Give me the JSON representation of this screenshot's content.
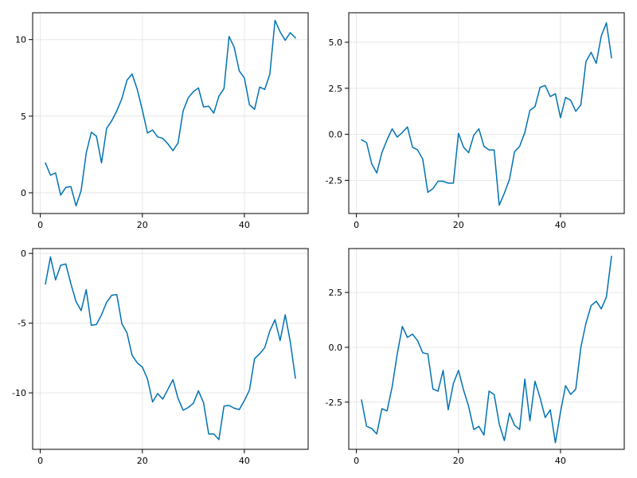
{
  "figure": {
    "line_color": "#0072b2",
    "grid": true
  },
  "chart_data": [
    {
      "type": "line",
      "title": "",
      "xlabel": "",
      "ylabel": "",
      "xlim": [
        -1.5,
        52.5
      ],
      "ylim": [
        -1.35,
        11.75
      ],
      "xticks": [
        {
          "value": 0,
          "label": "0"
        },
        {
          "value": 20,
          "label": "20"
        },
        {
          "value": 40,
          "label": "40"
        }
      ],
      "yticks": [
        {
          "value": 0,
          "label": "0"
        },
        {
          "value": 5,
          "label": "5"
        },
        {
          "value": 10,
          "label": "10"
        }
      ],
      "x": [
        1,
        2,
        3,
        4,
        5,
        6,
        7,
        8,
        9,
        10,
        11,
        12,
        13,
        14,
        15,
        16,
        17,
        18,
        19,
        20,
        21,
        22,
        23,
        24,
        25,
        26,
        27,
        28,
        29,
        30,
        31,
        32,
        33,
        34,
        35,
        36,
        37,
        38,
        39,
        40,
        41,
        42,
        43,
        44,
        45,
        46,
        47,
        48,
        49,
        50
      ],
      "series": [
        {
          "values": [
            1.95,
            1.15,
            1.3,
            -0.15,
            0.35,
            0.4,
            -0.85,
            0.15,
            2.6,
            3.95,
            3.7,
            1.95,
            4.2,
            4.7,
            5.35,
            6.15,
            7.35,
            7.75,
            6.75,
            5.4,
            3.9,
            4.1,
            3.65,
            3.55,
            3.2,
            2.75,
            3.25,
            5.35,
            6.2,
            6.6,
            6.85,
            5.6,
            5.65,
            5.2,
            6.3,
            6.8,
            10.2,
            9.5,
            7.95,
            7.5,
            5.75,
            5.45,
            6.9,
            6.75,
            7.75,
            11.25,
            10.5,
            9.95,
            10.45,
            10.1
          ]
        }
      ]
    },
    {
      "type": "line",
      "title": "",
      "xlabel": "",
      "ylabel": "",
      "xlim": [
        -1.5,
        52.5
      ],
      "ylim": [
        -4.3,
        6.6
      ],
      "xticks": [
        {
          "value": 0,
          "label": "0"
        },
        {
          "value": 20,
          "label": "20"
        },
        {
          "value": 40,
          "label": "40"
        }
      ],
      "yticks": [
        {
          "value": -2.5,
          "label": "-2.5"
        },
        {
          "value": 0,
          "label": "0.0"
        },
        {
          "value": 2.5,
          "label": "2.5"
        },
        {
          "value": 5,
          "label": "5.0"
        }
      ],
      "x": [
        1,
        2,
        3,
        4,
        5,
        6,
        7,
        8,
        9,
        10,
        11,
        12,
        13,
        14,
        15,
        16,
        17,
        18,
        19,
        20,
        21,
        22,
        23,
        24,
        25,
        26,
        27,
        28,
        29,
        30,
        31,
        32,
        33,
        34,
        35,
        36,
        37,
        38,
        39,
        40,
        41,
        42,
        43,
        44,
        45,
        46,
        47,
        48,
        49,
        50
      ],
      "series": [
        {
          "values": [
            -0.3,
            -0.45,
            -1.6,
            -2.1,
            -1.0,
            -0.3,
            0.3,
            -0.15,
            0.1,
            0.4,
            -0.7,
            -0.85,
            -1.35,
            -3.15,
            -2.95,
            -2.55,
            -2.55,
            -2.65,
            -2.65,
            0.05,
            -0.7,
            -1.0,
            -0.05,
            0.3,
            -0.65,
            -0.85,
            -0.85,
            -3.85,
            -3.2,
            -2.45,
            -0.95,
            -0.65,
            0.1,
            1.3,
            1.5,
            2.55,
            2.65,
            2.05,
            2.2,
            0.9,
            2.0,
            1.85,
            1.25,
            1.6,
            3.95,
            4.45,
            3.85,
            5.35,
            6.05,
            4.15
          ]
        }
      ]
    },
    {
      "type": "line",
      "title": "",
      "xlabel": "",
      "ylabel": "",
      "xlim": [
        -1.5,
        52.5
      ],
      "ylim": [
        -14.05,
        0.35
      ],
      "xticks": [
        {
          "value": 0,
          "label": "0"
        },
        {
          "value": 20,
          "label": "20"
        },
        {
          "value": 40,
          "label": "40"
        }
      ],
      "yticks": [
        {
          "value": -10,
          "label": "-10"
        },
        {
          "value": -5,
          "label": "-5"
        },
        {
          "value": 0,
          "label": "0"
        }
      ],
      "x": [
        1,
        2,
        3,
        4,
        5,
        6,
        7,
        8,
        9,
        10,
        11,
        12,
        13,
        14,
        15,
        16,
        17,
        18,
        19,
        20,
        21,
        22,
        23,
        24,
        25,
        26,
        27,
        28,
        29,
        30,
        31,
        32,
        33,
        34,
        35,
        36,
        37,
        38,
        39,
        40,
        41,
        42,
        43,
        44,
        45,
        46,
        47,
        48,
        49,
        50
      ],
      "series": [
        {
          "values": [
            -2.2,
            -0.25,
            -1.9,
            -0.85,
            -0.75,
            -2.2,
            -3.45,
            -4.1,
            -2.6,
            -5.15,
            -5.1,
            -4.4,
            -3.5,
            -3.0,
            -2.95,
            -5.05,
            -5.7,
            -7.3,
            -7.85,
            -8.15,
            -9.0,
            -10.65,
            -10.05,
            -10.45,
            -9.75,
            -9.05,
            -10.4,
            -11.25,
            -11.05,
            -10.75,
            -9.85,
            -10.7,
            -12.95,
            -12.95,
            -13.35,
            -10.95,
            -10.9,
            -11.1,
            -11.2,
            -10.55,
            -9.8,
            -7.55,
            -7.2,
            -6.75,
            -5.55,
            -4.75,
            -6.25,
            -4.4,
            -6.35,
            -8.95
          ]
        }
      ]
    },
    {
      "type": "line",
      "title": "",
      "xlabel": "",
      "ylabel": "",
      "xlim": [
        -1.5,
        52.5
      ],
      "ylim": [
        -4.65,
        4.5
      ],
      "xticks": [
        {
          "value": 0,
          "label": "0"
        },
        {
          "value": 20,
          "label": "20"
        },
        {
          "value": 40,
          "label": "40"
        }
      ],
      "yticks": [
        {
          "value": -2.5,
          "label": "-2.5"
        },
        {
          "value": 0,
          "label": "0.0"
        },
        {
          "value": 2.5,
          "label": "2.5"
        }
      ],
      "x": [
        1,
        2,
        3,
        4,
        5,
        6,
        7,
        8,
        9,
        10,
        11,
        12,
        13,
        14,
        15,
        16,
        17,
        18,
        19,
        20,
        21,
        22,
        23,
        24,
        25,
        26,
        27,
        28,
        29,
        30,
        31,
        32,
        33,
        34,
        35,
        36,
        37,
        38,
        39,
        40,
        41,
        42,
        43,
        44,
        45,
        46,
        47,
        48,
        49,
        50
      ],
      "series": [
        {
          "values": [
            -2.4,
            -3.6,
            -3.7,
            -3.95,
            -2.8,
            -2.9,
            -1.8,
            -0.3,
            0.95,
            0.45,
            0.6,
            0.3,
            -0.25,
            -0.3,
            -1.9,
            -2.0,
            -1.05,
            -2.85,
            -1.65,
            -1.05,
            -1.95,
            -2.7,
            -3.75,
            -3.6,
            -4.0,
            -2.0,
            -2.15,
            -3.5,
            -4.25,
            -3.0,
            -3.55,
            -3.75,
            -1.45,
            -3.35,
            -1.55,
            -2.3,
            -3.2,
            -2.85,
            -4.35,
            -2.95,
            -1.75,
            -2.15,
            -1.9,
            0.0,
            1.1,
            1.9,
            2.1,
            1.75,
            2.3,
            4.15
          ]
        }
      ]
    }
  ]
}
